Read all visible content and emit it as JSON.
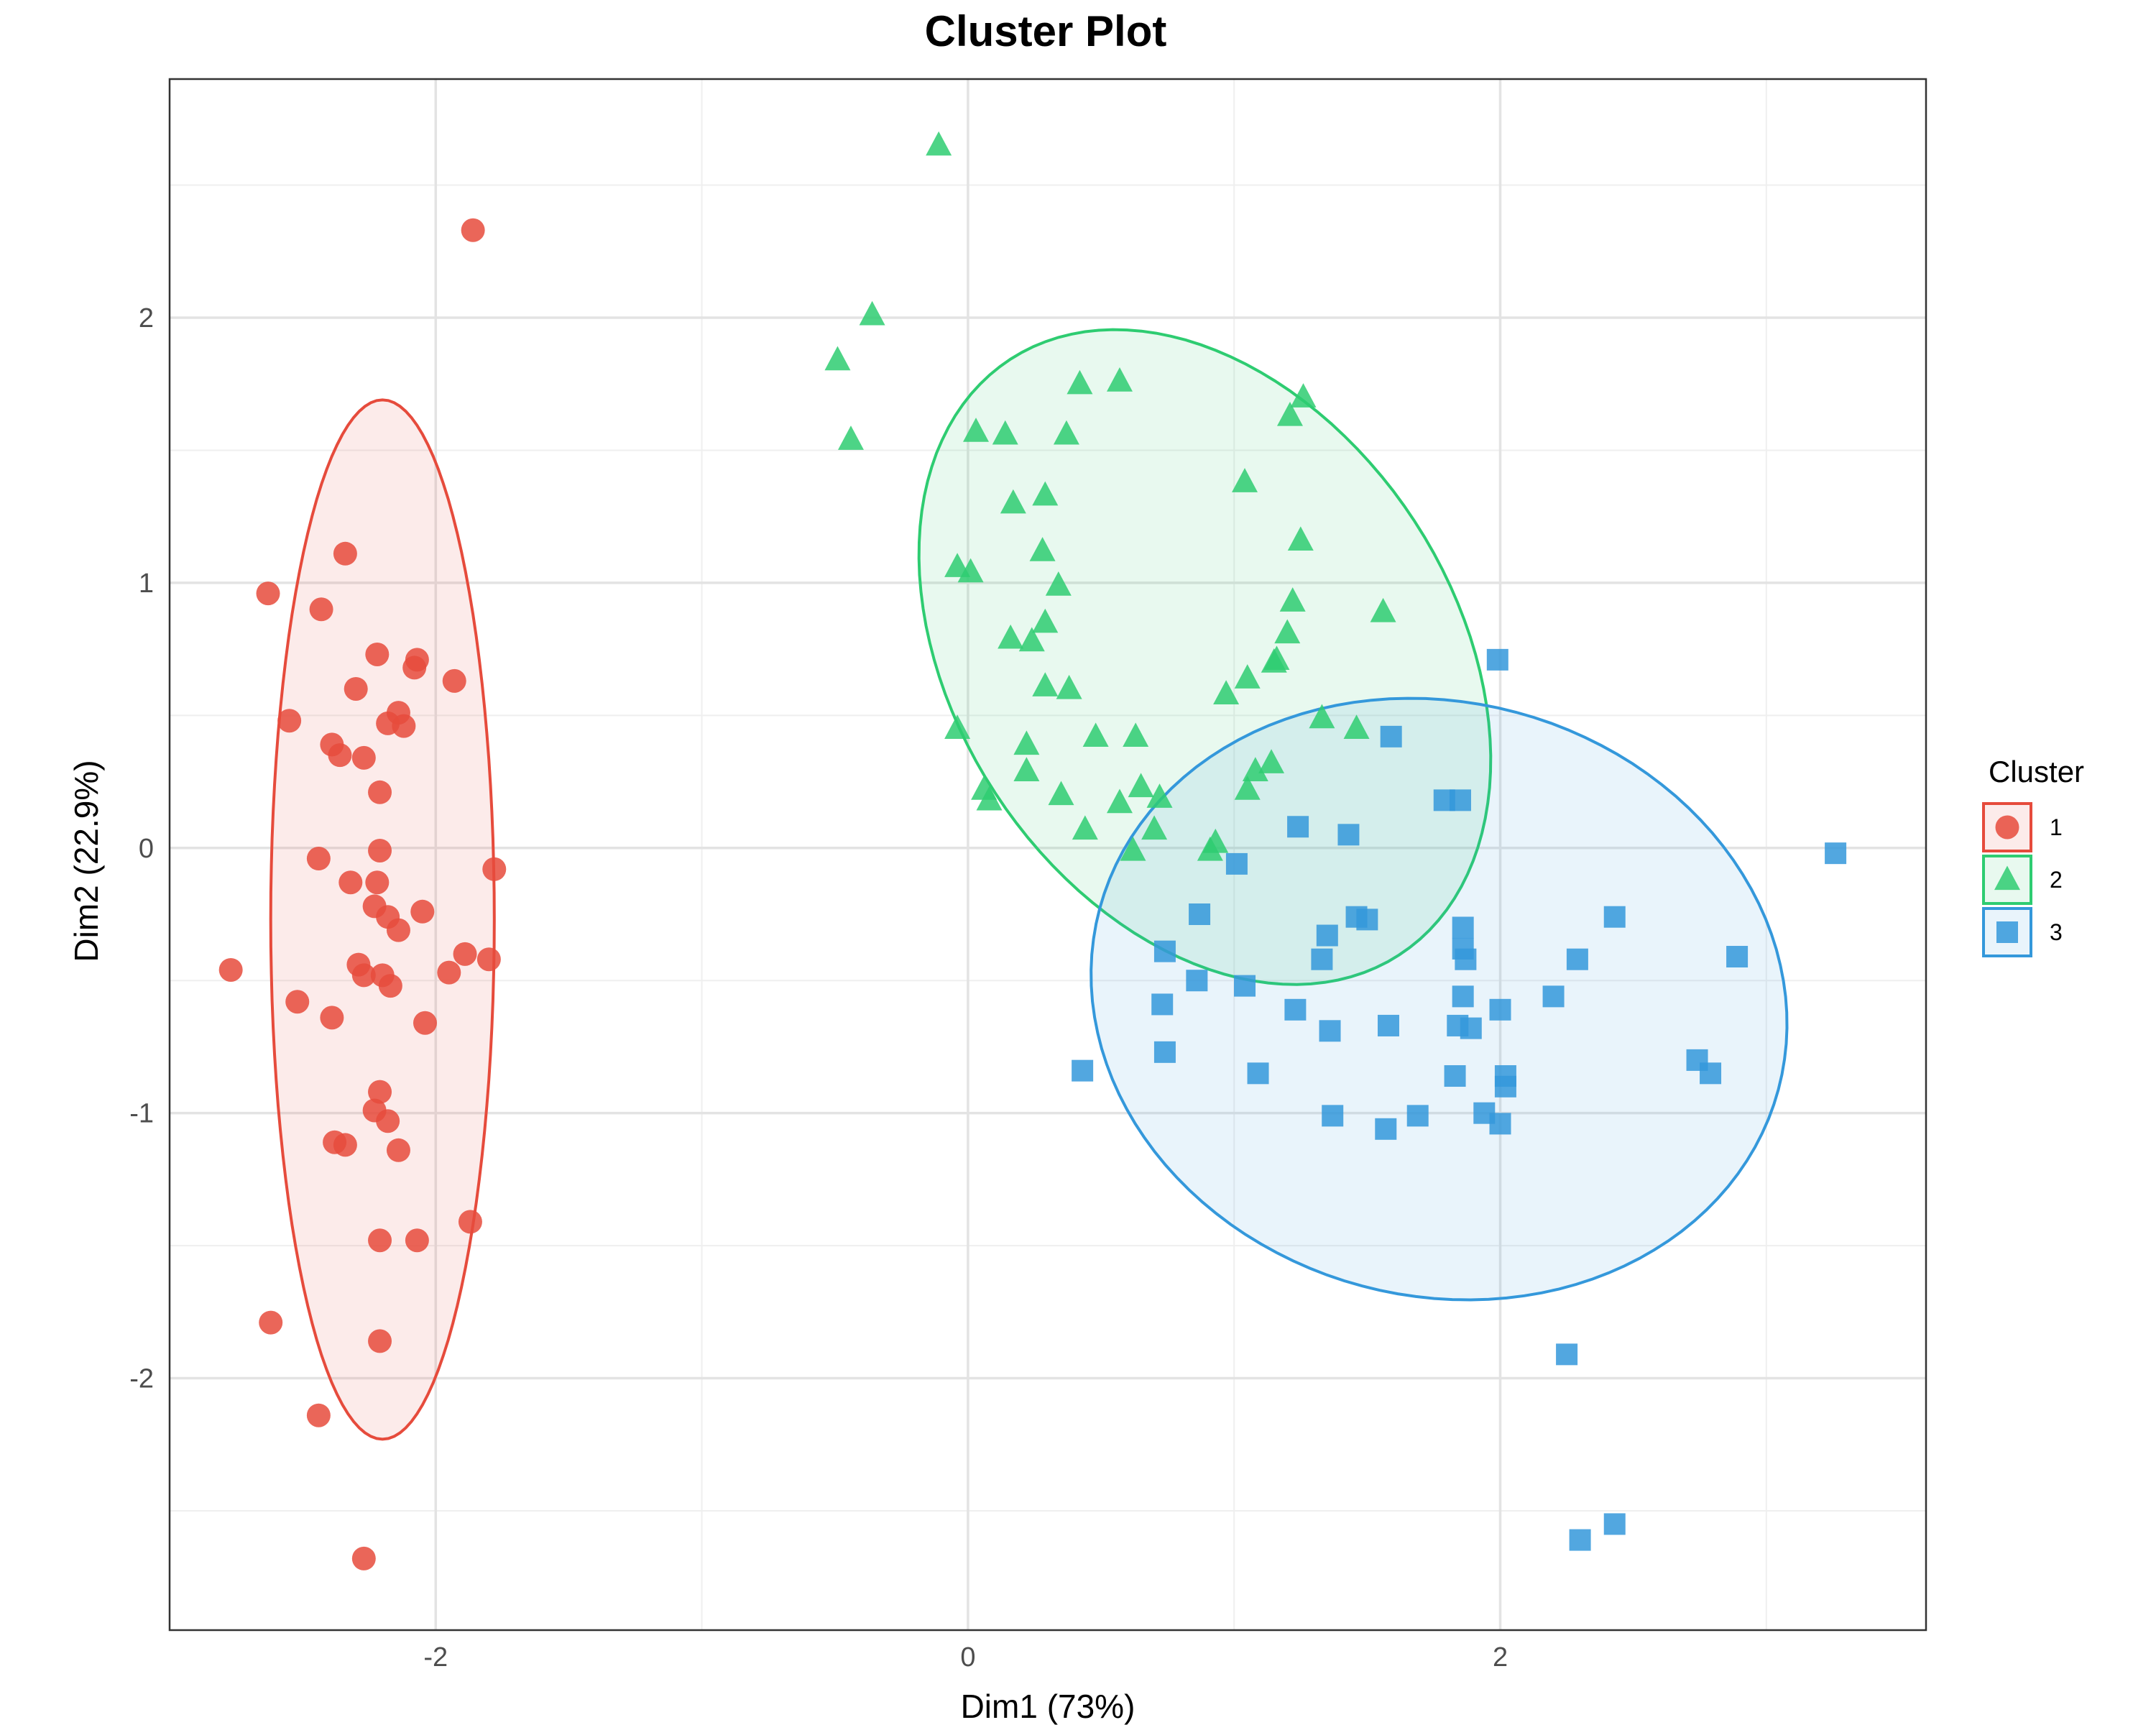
{
  "chart_data": {
    "type": "scatter",
    "title": "Cluster Plot",
    "xlabel": "Dim1 (73%)",
    "ylabel": "Dim2 (22.9%)",
    "xlim": [
      -3.0,
      3.6
    ],
    "ylim": [
      -2.95,
      2.9
    ],
    "x_ticks": [
      -2,
      0,
      2
    ],
    "y_ticks": [
      -2,
      -1,
      0,
      1,
      2
    ],
    "x_tick_labels": [
      "-2",
      "0",
      "2"
    ],
    "y_tick_labels": [
      "-2",
      "-1",
      "0",
      "1",
      "2"
    ],
    "grid": true,
    "legend": {
      "title": "Cluster",
      "position": "right"
    },
    "series": [
      {
        "name": "1",
        "shape": "circle",
        "color": "#E64B3C",
        "ellipse": {
          "cx": -2.2,
          "cy": -0.27,
          "rx": 0.42,
          "ry": 1.96,
          "angle_deg": 0
        },
        "points": [
          [
            -1.86,
            2.33
          ],
          [
            -2.34,
            1.11
          ],
          [
            -2.63,
            0.96
          ],
          [
            -2.43,
            0.9
          ],
          [
            -2.22,
            0.73
          ],
          [
            -2.07,
            0.71
          ],
          [
            -2.08,
            0.68
          ],
          [
            -1.93,
            0.63
          ],
          [
            -2.3,
            0.6
          ],
          [
            -2.14,
            0.51
          ],
          [
            -2.12,
            0.46
          ],
          [
            -2.18,
            0.47
          ],
          [
            -2.55,
            0.48
          ],
          [
            -2.39,
            0.39
          ],
          [
            -2.36,
            0.35
          ],
          [
            -2.27,
            0.34
          ],
          [
            -2.21,
            0.21
          ],
          [
            -2.21,
            -0.01
          ],
          [
            -2.44,
            -0.04
          ],
          [
            -1.78,
            -0.08
          ],
          [
            -2.32,
            -0.13
          ],
          [
            -2.22,
            -0.13
          ],
          [
            -2.23,
            -0.22
          ],
          [
            -2.05,
            -0.24
          ],
          [
            -2.18,
            -0.26
          ],
          [
            -2.14,
            -0.31
          ],
          [
            -1.89,
            -0.4
          ],
          [
            -1.8,
            -0.42
          ],
          [
            -2.77,
            -0.46
          ],
          [
            -2.29,
            -0.44
          ],
          [
            -2.27,
            -0.48
          ],
          [
            -2.2,
            -0.48
          ],
          [
            -1.95,
            -0.47
          ],
          [
            -2.17,
            -0.52
          ],
          [
            -2.52,
            -0.58
          ],
          [
            -2.39,
            -0.64
          ],
          [
            -2.04,
            -0.66
          ],
          [
            -2.21,
            -0.92
          ],
          [
            -2.23,
            -0.99
          ],
          [
            -2.18,
            -1.03
          ],
          [
            -2.38,
            -1.11
          ],
          [
            -2.34,
            -1.12
          ],
          [
            -2.14,
            -1.14
          ],
          [
            -1.87,
            -1.41
          ],
          [
            -2.21,
            -1.48
          ],
          [
            -2.07,
            -1.48
          ],
          [
            -2.62,
            -1.79
          ],
          [
            -2.21,
            -1.86
          ],
          [
            -2.44,
            -2.14
          ],
          [
            -2.27,
            -2.68
          ]
        ]
      },
      {
        "name": "2",
        "shape": "triangle",
        "color": "#2ECC71",
        "ellipse": {
          "cx": 0.89,
          "cy": 0.72,
          "rx": 1.34,
          "ry": 0.94,
          "angle_deg": -57
        },
        "points": [
          [
            -0.11,
            2.65
          ],
          [
            -0.36,
            2.01
          ],
          [
            -0.49,
            1.84
          ],
          [
            0.42,
            1.75
          ],
          [
            0.57,
            1.76
          ],
          [
            1.26,
            1.7
          ],
          [
            1.21,
            1.63
          ],
          [
            0.03,
            1.57
          ],
          [
            0.14,
            1.56
          ],
          [
            0.37,
            1.56
          ],
          [
            -0.44,
            1.54
          ],
          [
            1.04,
            1.38
          ],
          [
            0.29,
            1.33
          ],
          [
            0.17,
            1.3
          ],
          [
            1.25,
            1.16
          ],
          [
            0.28,
            1.12
          ],
          [
            -0.04,
            1.06
          ],
          [
            0.01,
            1.04
          ],
          [
            0.34,
            0.99
          ],
          [
            1.22,
            0.93
          ],
          [
            1.56,
            0.89
          ],
          [
            0.29,
            0.85
          ],
          [
            0.16,
            0.79
          ],
          [
            0.24,
            0.78
          ],
          [
            1.2,
            0.81
          ],
          [
            1.15,
            0.7
          ],
          [
            1.16,
            0.71
          ],
          [
            1.05,
            0.64
          ],
          [
            0.29,
            0.61
          ],
          [
            0.38,
            0.6
          ],
          [
            0.97,
            0.58
          ],
          [
            1.33,
            0.49
          ],
          [
            1.46,
            0.45
          ],
          [
            -0.04,
            0.45
          ],
          [
            0.48,
            0.42
          ],
          [
            0.63,
            0.42
          ],
          [
            0.22,
            0.39
          ],
          [
            1.14,
            0.32
          ],
          [
            1.08,
            0.29
          ],
          [
            0.22,
            0.29
          ],
          [
            0.65,
            0.23
          ],
          [
            0.06,
            0.22
          ],
          [
            0.08,
            0.18
          ],
          [
            0.35,
            0.2
          ],
          [
            0.72,
            0.19
          ],
          [
            1.05,
            0.22
          ],
          [
            0.57,
            0.17
          ],
          [
            0.44,
            0.07
          ],
          [
            0.7,
            0.07
          ],
          [
            0.93,
            0.02
          ],
          [
            0.91,
            -0.01
          ],
          [
            0.62,
            -0.01
          ]
        ]
      },
      {
        "name": "3",
        "shape": "square",
        "color": "#3498DB",
        "ellipse": {
          "cx": 1.77,
          "cy": -0.57,
          "rx": 1.32,
          "ry": 1.12,
          "angle_deg": -15
        },
        "points": [
          [
            1.99,
            0.71
          ],
          [
            1.59,
            0.42
          ],
          [
            1.79,
            0.18
          ],
          [
            1.85,
            0.18
          ],
          [
            1.24,
            0.08
          ],
          [
            1.43,
            0.05
          ],
          [
            3.26,
            -0.02
          ],
          [
            1.01,
            -0.06
          ],
          [
            0.87,
            -0.25
          ],
          [
            1.46,
            -0.26
          ],
          [
            1.5,
            -0.27
          ],
          [
            2.43,
            -0.26
          ],
          [
            1.35,
            -0.33
          ],
          [
            1.86,
            -0.3
          ],
          [
            1.86,
            -0.38
          ],
          [
            1.87,
            -0.42
          ],
          [
            0.74,
            -0.39
          ],
          [
            1.33,
            -0.42
          ],
          [
            2.29,
            -0.42
          ],
          [
            2.89,
            -0.41
          ],
          [
            0.86,
            -0.5
          ],
          [
            1.04,
            -0.52
          ],
          [
            2.2,
            -0.56
          ],
          [
            1.86,
            -0.56
          ],
          [
            0.73,
            -0.59
          ],
          [
            1.23,
            -0.61
          ],
          [
            2.0,
            -0.61
          ],
          [
            1.58,
            -0.67
          ],
          [
            1.84,
            -0.67
          ],
          [
            1.89,
            -0.68
          ],
          [
            1.36,
            -0.69
          ],
          [
            0.74,
            -0.77
          ],
          [
            0.43,
            -0.84
          ],
          [
            1.09,
            -0.85
          ],
          [
            1.83,
            -0.86
          ],
          [
            2.02,
            -0.86
          ],
          [
            2.02,
            -0.9
          ],
          [
            2.74,
            -0.8
          ],
          [
            2.79,
            -0.85
          ],
          [
            1.37,
            -1.01
          ],
          [
            1.69,
            -1.01
          ],
          [
            1.94,
            -1.0
          ],
          [
            2.0,
            -1.04
          ],
          [
            1.57,
            -1.06
          ],
          [
            2.25,
            -1.91
          ],
          [
            2.43,
            -2.55
          ],
          [
            2.3,
            -2.61
          ]
        ]
      }
    ]
  }
}
